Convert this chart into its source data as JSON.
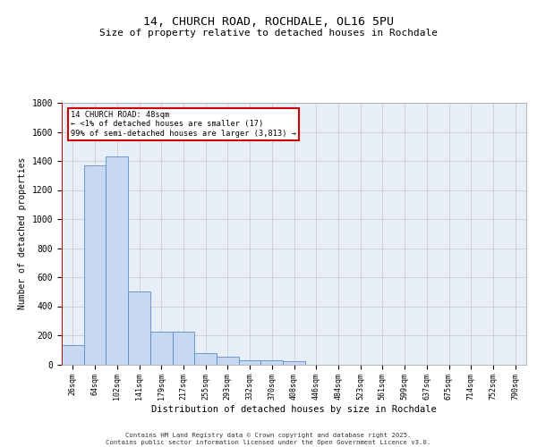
{
  "title1": "14, CHURCH ROAD, ROCHDALE, OL16 5PU",
  "title2": "Size of property relative to detached houses in Rochdale",
  "xlabel": "Distribution of detached houses by size in Rochdale",
  "ylabel": "Number of detached properties",
  "categories": [
    "26sqm",
    "64sqm",
    "102sqm",
    "141sqm",
    "179sqm",
    "217sqm",
    "255sqm",
    "293sqm",
    "332sqm",
    "370sqm",
    "408sqm",
    "446sqm",
    "484sqm",
    "523sqm",
    "561sqm",
    "599sqm",
    "637sqm",
    "675sqm",
    "714sqm",
    "752sqm",
    "790sqm"
  ],
  "values": [
    130,
    1370,
    1430,
    500,
    225,
    225,
    80,
    50,
    28,
    28,
    20,
    0,
    0,
    0,
    0,
    0,
    0,
    0,
    0,
    0,
    0
  ],
  "bar_color": "#c8d8f0",
  "bar_edge_color": "#5b8cc8",
  "grid_color": "#cccccc",
  "bg_color": "#e8eef8",
  "annotation_text": "14 CHURCH ROAD: 48sqm\n← <1% of detached houses are smaller (17)\n99% of semi-detached houses are larger (3,813) →",
  "annotation_box_color": "#ffffff",
  "annotation_box_edge": "#cc0000",
  "vline_color": "#cc0000",
  "ylim": [
    0,
    1800
  ],
  "yticks": [
    0,
    200,
    400,
    600,
    800,
    1000,
    1200,
    1400,
    1600,
    1800
  ],
  "footer1": "Contains HM Land Registry data © Crown copyright and database right 2025.",
  "footer2": "Contains public sector information licensed under the Open Government Licence v3.0."
}
